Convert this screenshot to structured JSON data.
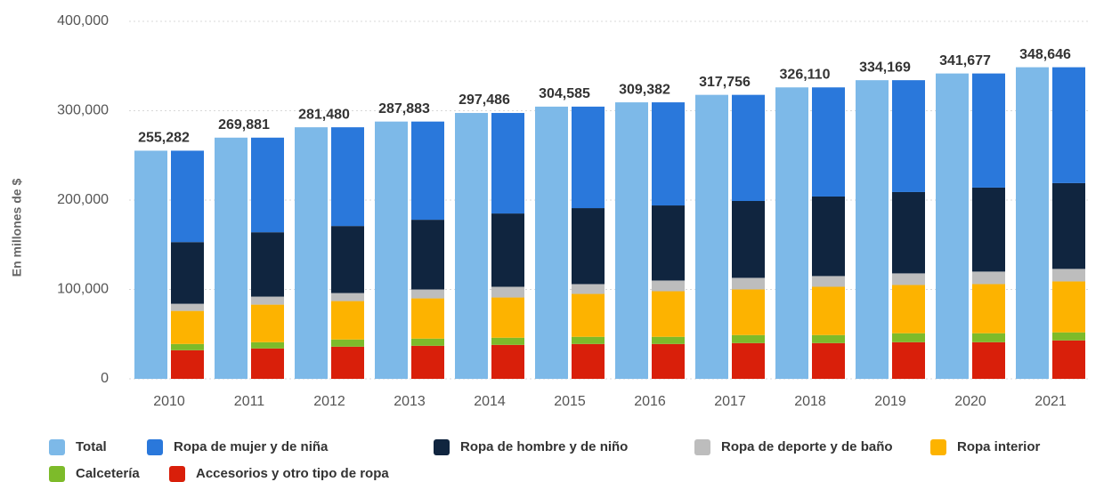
{
  "chart_data": {
    "type": "bar",
    "stacked": true,
    "y_label": "En millones de $",
    "categories": [
      "2010",
      "2011",
      "2012",
      "2013",
      "2014",
      "2015",
      "2016",
      "2017",
      "2018",
      "2019",
      "2020",
      "2021"
    ],
    "ylim": [
      0,
      400000
    ],
    "yticks": [
      0,
      {
        "value": 100000,
        "label": "100,000"
      },
      {
        "value": 200000,
        "label": "200,000"
      },
      {
        "value": 300000,
        "label": "300,000"
      },
      {
        "value": 400000,
        "label": "400,000"
      }
    ],
    "grid": true,
    "legend": "bottom",
    "series": [
      {
        "name": "Total",
        "color": "#7db9e8",
        "stack": 0,
        "values": [
          255282,
          269881,
          281480,
          287883,
          297486,
          304585,
          309382,
          317756,
          326110,
          334169,
          341677,
          348646
        ],
        "value_labels": [
          "255,282",
          "269,881",
          "281,480",
          "287,883",
          "297,486",
          "304,585",
          "309,382",
          "317,756",
          "326,110",
          "334,169",
          "341,677",
          "348,646"
        ]
      },
      {
        "name": "Ropa de mujer y de niña",
        "color": "#2a78db",
        "stack": 1,
        "values": [
          102282,
          105881,
          110480,
          109883,
          112486,
          113585,
          115382,
          118756,
          122110,
          125169,
          127677,
          129646
        ]
      },
      {
        "name": "Ropa de hombre y de niño",
        "color": "#10253f",
        "stack": 1,
        "values": [
          69000,
          72000,
          75000,
          78000,
          82000,
          85000,
          84000,
          86000,
          89000,
          91000,
          94000,
          96000
        ]
      },
      {
        "name": "Ropa de deporte y de baño",
        "color": "#bdbdbd",
        "stack": 1,
        "values": [
          8000,
          9000,
          9000,
          10000,
          12000,
          11000,
          12000,
          13000,
          12000,
          13000,
          14000,
          14000
        ]
      },
      {
        "name": "Ropa interior",
        "color": "#fdb300",
        "stack": 1,
        "values": [
          37000,
          42000,
          43000,
          45000,
          45000,
          48000,
          51000,
          51000,
          54000,
          54000,
          55000,
          57000
        ]
      },
      {
        "name": "Calcetería",
        "color": "#7dbb2a",
        "stack": 1,
        "values": [
          7000,
          7000,
          8000,
          8000,
          8000,
          8000,
          8000,
          9000,
          9000,
          10000,
          10000,
          9000
        ]
      },
      {
        "name": "Accesorios y otro tipo de ropa",
        "color": "#d91f0a",
        "stack": 1,
        "values": [
          32000,
          34000,
          36000,
          37000,
          38000,
          39000,
          39000,
          40000,
          40000,
          41000,
          41000,
          43000
        ]
      }
    ]
  }
}
